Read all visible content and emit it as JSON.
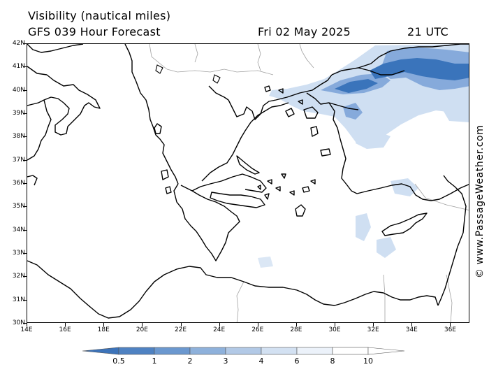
{
  "header": {
    "title": "Visibility (nautical miles)",
    "model_line": "GFS 039 Hour Forecast",
    "date": "Fri 02 May 2025",
    "time": "21 UTC"
  },
  "credit": "© www.PassageWeather.com",
  "map": {
    "lon_range": [
      14,
      37
    ],
    "lat_range": [
      30,
      42
    ],
    "lat_labels": [
      "42N",
      "41N",
      "40N",
      "39N",
      "38N",
      "37N",
      "36N",
      "35N",
      "34N",
      "33N",
      "32N",
      "31N",
      "30N"
    ],
    "lon_labels": [
      "14E",
      "16E",
      "18E",
      "20E",
      "22E",
      "24E",
      "26E",
      "28E",
      "30E",
      "32E",
      "34E",
      "36E"
    ],
    "colors": {
      "coast": "#000000",
      "border": "#a0a0a0",
      "low_vis_dark": "#3a74bb",
      "low_vis_mid": "#7fa6d6",
      "low_vis_light": "#cfdff2"
    }
  },
  "legend": {
    "labels": [
      "0.5",
      "1",
      "2",
      "3",
      "4",
      "6",
      "8",
      "10"
    ],
    "colors": [
      "#3c73b9",
      "#4f82c2",
      "#6b98cf",
      "#8eb1db",
      "#b2c9e6",
      "#d3e1f2",
      "#ecf2fa",
      "#ffffff"
    ]
  }
}
